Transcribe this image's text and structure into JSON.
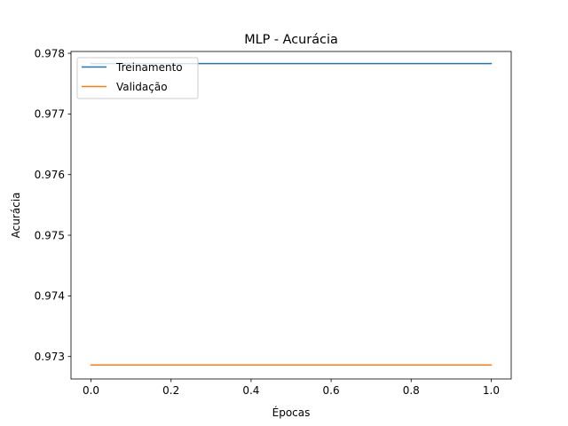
{
  "chart_data": {
    "type": "line",
    "title": "MLP - Acurácia",
    "xlabel": "Épocas",
    "ylabel": "Acurácia",
    "xlim": [
      -0.05,
      1.05
    ],
    "ylim": [
      0.97263,
      0.97803
    ],
    "xticks": [
      0.0,
      0.2,
      0.4,
      0.6,
      0.8,
      1.0
    ],
    "xtick_labels": [
      "0.0",
      "0.2",
      "0.4",
      "0.6",
      "0.8",
      "1.0"
    ],
    "yticks": [
      0.973,
      0.974,
      0.975,
      0.976,
      0.977,
      0.978
    ],
    "ytick_labels": [
      "0.973",
      "0.974",
      "0.975",
      "0.976",
      "0.977",
      "0.978"
    ],
    "grid": false,
    "legend_position": "top-left",
    "series": [
      {
        "name": "Treinamento",
        "color": "#1f77b4",
        "x": [
          0,
          1
        ],
        "y": [
          0.97783,
          0.97783
        ]
      },
      {
        "name": "Validação",
        "color": "#ff7f0e",
        "x": [
          0,
          1
        ],
        "y": [
          0.97286,
          0.97286
        ]
      }
    ]
  }
}
